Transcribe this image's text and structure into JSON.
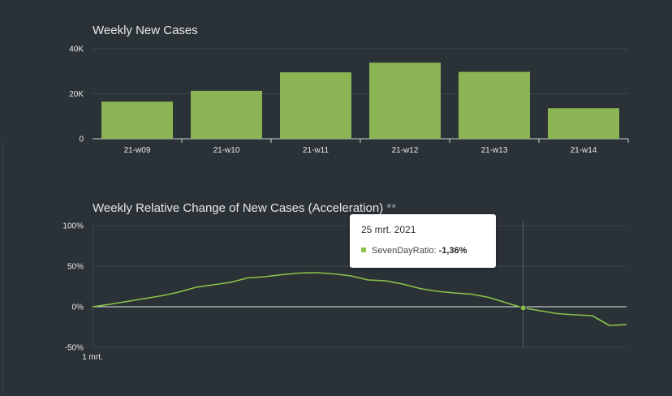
{
  "colors": {
    "background": "#2b3237",
    "bar": "#8bb555",
    "line": "#8bc34a",
    "grid": "#3d464b",
    "axis": "#cfd4d6",
    "text": "#e6e9ea",
    "zero_line": "#e6e9ea",
    "crosshair": "#555e63"
  },
  "chart_data": [
    {
      "type": "bar",
      "title": "Weekly New Cases",
      "categories": [
        "21-w09",
        "21-w10",
        "21-w11",
        "21-w12",
        "21-w13",
        "21-w14"
      ],
      "values": [
        16500,
        21300,
        29500,
        33800,
        29700,
        13600
      ],
      "ylim": [
        0,
        40000
      ],
      "yticks": [
        0,
        20000,
        40000
      ],
      "ytick_labels": [
        "0",
        "20K",
        "40K"
      ],
      "xlabel": "",
      "ylabel": "",
      "grid": true,
      "legend": "none"
    },
    {
      "type": "line",
      "title": "Weekly Relative Change of New Cases (Acceleration)",
      "title_suffix": "**",
      "series": [
        {
          "name": "SevenDayRatio",
          "x": [
            0,
            1,
            2,
            3,
            4,
            5,
            6,
            7,
            8,
            9,
            10,
            11,
            12,
            13,
            14,
            15,
            16,
            17,
            18,
            19,
            20,
            21,
            22,
            23,
            24,
            25,
            26,
            27,
            28,
            29,
            30,
            31
          ],
          "values": [
            0,
            3,
            6.5,
            10,
            13.5,
            18,
            24,
            27,
            30,
            35.5,
            37,
            39.5,
            41.5,
            42,
            40.5,
            38,
            33,
            32,
            28,
            22.5,
            19,
            17,
            15.5,
            11.5,
            5,
            -1.36,
            -5,
            -8.5,
            -10,
            -11,
            -23,
            -22
          ]
        }
      ],
      "x_start_label": "1 mrt.",
      "ylim": [
        -50,
        100
      ],
      "yticks": [
        -50,
        0,
        50,
        100
      ],
      "ytick_labels": [
        "-50%",
        "0%",
        "50%",
        "100%"
      ],
      "grid": true,
      "legend": "none",
      "highlight_index": 25
    }
  ],
  "tooltip": {
    "date": "25 mrt. 2021",
    "series_name": "SevenDayRatio:",
    "value": "-1,36%"
  }
}
